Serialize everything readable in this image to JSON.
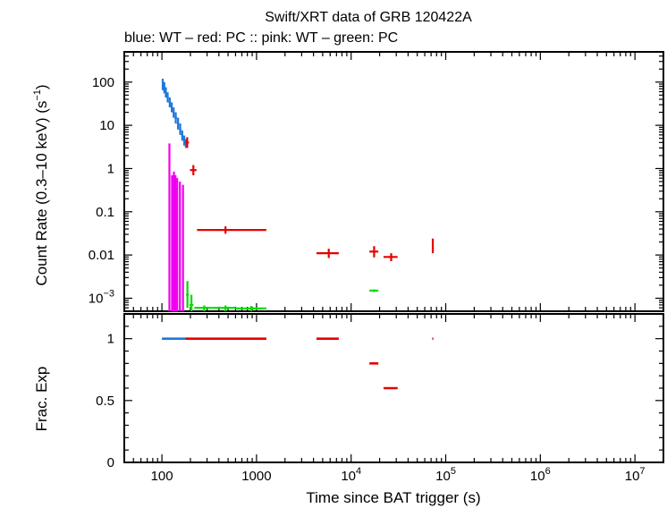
{
  "chart_data": {
    "type": "scatter",
    "title": "Swift/XRT data of GRB 120422A",
    "subtitle": "blue: WT  – red: PC  :: pink: WT  – green: PC",
    "xlabel": "Time since BAT trigger (s)",
    "xscale": "log",
    "xlim": [
      40,
      20000000
    ],
    "x_ticks": [
      {
        "value": 100,
        "label": "100"
      },
      {
        "value": 1000,
        "label": "1000"
      },
      {
        "value": 10000,
        "label": "10",
        "exp": "4"
      },
      {
        "value": 100000,
        "label": "10",
        "exp": "5"
      },
      {
        "value": 1000000,
        "label": "10",
        "exp": "6"
      },
      {
        "value": 10000000,
        "label": "10",
        "exp": "7"
      }
    ],
    "colors": {
      "blue": "#1e78dc",
      "red": "#e60000",
      "pink": "#f000f0",
      "green": "#00dc00"
    },
    "top_panel": {
      "ylabel": "Count Rate (0.3–10 keV) (s",
      "ylabel_exp": "−1",
      "ylabel_tail": ")",
      "yscale": "log",
      "ylim": [
        0.0005,
        500
      ],
      "y_ticks": [
        {
          "value": 100,
          "label": "100"
        },
        {
          "value": 10,
          "label": "10"
        },
        {
          "value": 1,
          "label": "1"
        },
        {
          "value": 0.1,
          "label": "0.1"
        },
        {
          "value": 0.01,
          "label": "0.01"
        },
        {
          "value": 0.001,
          "label": "10",
          "exp": "−3"
        }
      ],
      "series": [
        {
          "color_key": "blue",
          "points": [
            {
              "x": 102,
              "y": 90,
              "xlo": 100,
              "xhi": 104,
              "ylo": 65,
              "yhi": 120
            },
            {
              "x": 106,
              "y": 75,
              "xlo": 104,
              "xhi": 108,
              "ylo": 55,
              "yhi": 100
            },
            {
              "x": 110,
              "y": 58,
              "xlo": 108,
              "xhi": 112,
              "ylo": 44,
              "yhi": 76
            },
            {
              "x": 115,
              "y": 45,
              "xlo": 112,
              "xhi": 118,
              "ylo": 34,
              "yhi": 58
            },
            {
              "x": 121,
              "y": 34,
              "xlo": 118,
              "xhi": 124,
              "ylo": 26,
              "yhi": 44
            },
            {
              "x": 127,
              "y": 26,
              "xlo": 124,
              "xhi": 130,
              "ylo": 20,
              "yhi": 34
            },
            {
              "x": 133,
              "y": 20,
              "xlo": 130,
              "xhi": 136,
              "ylo": 15,
              "yhi": 26
            },
            {
              "x": 140,
              "y": 15,
              "xlo": 136,
              "xhi": 144,
              "ylo": 11,
              "yhi": 20
            },
            {
              "x": 148,
              "y": 11,
              "xlo": 144,
              "xhi": 152,
              "ylo": 8,
              "yhi": 15
            },
            {
              "x": 156,
              "y": 8,
              "xlo": 152,
              "xhi": 160,
              "ylo": 6,
              "yhi": 11
            },
            {
              "x": 164,
              "y": 5.8,
              "xlo": 160,
              "xhi": 168,
              "ylo": 4.4,
              "yhi": 7.6
            },
            {
              "x": 172,
              "y": 4.5,
              "xlo": 168,
              "xhi": 176,
              "ylo": 3.4,
              "yhi": 5.8
            },
            {
              "x": 179,
              "y": 3.8,
              "xlo": 176,
              "xhi": 182,
              "ylo": 3,
              "yhi": 4.8
            }
          ]
        },
        {
          "color_key": "red",
          "points": [
            {
              "x": 185,
              "y": 4.0,
              "xlo": 178,
              "xhi": 193,
              "ylo": 3.0,
              "yhi": 5.3
            },
            {
              "x": 215,
              "y": 0.92,
              "xlo": 198,
              "xhi": 232,
              "ylo": 0.7,
              "yhi": 1.2
            },
            {
              "x": 470,
              "y": 0.038,
              "xlo": 235,
              "xhi": 1270,
              "ylo": 0.031,
              "yhi": 0.046
            },
            {
              "x": 5800,
              "y": 0.011,
              "xlo": 4300,
              "xhi": 7400,
              "ylo": 0.0085,
              "yhi": 0.014
            },
            {
              "x": 17500,
              "y": 0.012,
              "xlo": 15600,
              "xhi": 19400,
              "ylo": 0.0088,
              "yhi": 0.016
            },
            {
              "x": 26500,
              "y": 0.009,
              "xlo": 22000,
              "xhi": 31000,
              "ylo": 0.0072,
              "yhi": 0.011
            },
            {
              "x": 73000,
              "y": 0.016,
              "xlo": 72000,
              "xhi": 74000,
              "ylo": 0.011,
              "yhi": 0.024
            }
          ]
        },
        {
          "color_key": "pink",
          "points": [
            {
              "x": 120,
              "y": 0.06,
              "xlo": 118,
              "xhi": 122,
              "ylo": 0.0005,
              "yhi": 3.8
            },
            {
              "x": 128,
              "y": 0.6,
              "xlo": 125,
              "xhi": 131,
              "ylo": 0.0005,
              "yhi": 0.7
            },
            {
              "x": 134,
              "y": 0.65,
              "xlo": 132,
              "xhi": 136,
              "ylo": 0.0005,
              "yhi": 0.85
            },
            {
              "x": 139,
              "y": 0.55,
              "xlo": 137,
              "xhi": 141,
              "ylo": 0.0005,
              "yhi": 0.7
            },
            {
              "x": 145,
              "y": 0.4,
              "xlo": 143,
              "xhi": 147,
              "ylo": 0.0005,
              "yhi": 0.6
            },
            {
              "x": 155,
              "y": 0.35,
              "xlo": 152,
              "xhi": 158,
              "ylo": 0.0005,
              "yhi": 0.5
            },
            {
              "x": 167,
              "y": 0.2,
              "xlo": 164,
              "xhi": 170,
              "ylo": 0.0005,
              "yhi": 0.42
            }
          ]
        },
        {
          "color_key": "green",
          "points": [
            {
              "x": 186,
              "y": 0.0012,
              "xlo": 180,
              "xhi": 192,
              "ylo": 0.0006,
              "yhi": 0.0025
            },
            {
              "x": 205,
              "y": 0.0007,
              "xlo": 195,
              "xhi": 215,
              "ylo": 0.0005,
              "yhi": 0.0012
            },
            {
              "x": 280,
              "y": 0.0006,
              "xlo": 220,
              "xhi": 340,
              "ylo": 0.0005,
              "yhi": 0.00068
            },
            {
              "x": 470,
              "y": 0.0006,
              "xlo": 340,
              "xhi": 600,
              "ylo": 0.0005,
              "yhi": 0.00068
            },
            {
              "x": 880,
              "y": 0.00058,
              "xlo": 600,
              "xhi": 1270,
              "ylo": 0.0005,
              "yhi": 0.00066
            },
            {
              "x": 17500,
              "y": 0.0015,
              "xlo": 15600,
              "xhi": 19400,
              "ylo": 0.0014,
              "yhi": 0.0016
            }
          ]
        }
      ]
    },
    "bottom_panel": {
      "ylabel": "Frac. Exp",
      "ylim": [
        0,
        1.2
      ],
      "y_ticks": [
        {
          "value": 0,
          "label": "0"
        },
        {
          "value": 0.5,
          "label": "0.5"
        },
        {
          "value": 1,
          "label": "1"
        }
      ],
      "segments": [
        {
          "color_key": "blue",
          "xlo": 100,
          "xhi": 182,
          "y": 1
        },
        {
          "color_key": "red",
          "xlo": 178,
          "xhi": 1270,
          "y": 1
        },
        {
          "color_key": "red",
          "xlo": 4300,
          "xhi": 7400,
          "y": 1
        },
        {
          "color_key": "red",
          "xlo": 15600,
          "xhi": 19400,
          "y": 0.8
        },
        {
          "color_key": "red",
          "xlo": 22000,
          "xhi": 31000,
          "y": 0.6
        },
        {
          "color_key": "red",
          "xlo": 72000,
          "xhi": 74000,
          "y": 1
        }
      ]
    }
  }
}
